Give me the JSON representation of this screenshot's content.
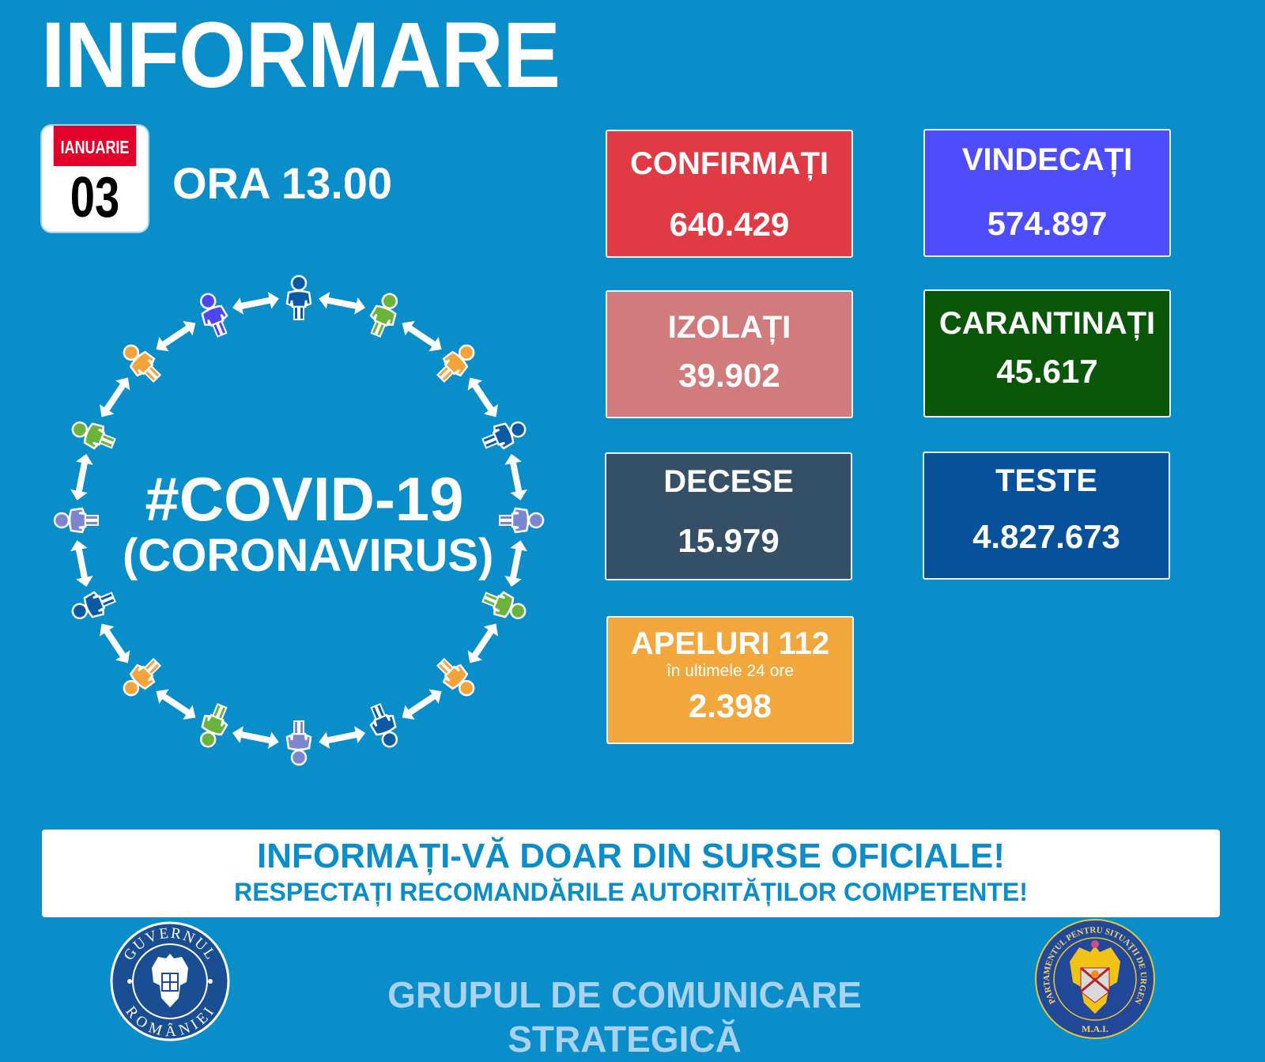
{
  "header": {
    "title": "INFORMARE",
    "date": {
      "month": "IANUARIE",
      "day": "03"
    },
    "time": "ORA 13.00"
  },
  "hero": {
    "hashtag": "#COVID-19",
    "subtitle": "(CORONAVIRUS)",
    "figure_colors": [
      "#0b5aa6",
      "#6cb33e",
      "#f2a33a",
      "#0b5aa6",
      "#7b86cf",
      "#6cb33e",
      "#f2a33a",
      "#0b5aa6",
      "#7b86cf",
      "#6cb33e",
      "#f2a33a",
      "#0b5aa6",
      "#7b86cf",
      "#6cb33e",
      "#f2a33a",
      "#4f45f2"
    ]
  },
  "stats": [
    {
      "id": "confirmati",
      "label": "CONFIRMAȚI",
      "value": "640.429",
      "color": "#e03a45"
    },
    {
      "id": "vindecati",
      "label": "VINDECAȚI",
      "value": "574.897",
      "color": "#4e4dfd"
    },
    {
      "id": "izolati",
      "label": "IZOLAȚI",
      "value": "39.902",
      "color": "#d27b7c"
    },
    {
      "id": "carantinati",
      "label": "CARANTINAȚI",
      "value": "45.617",
      "color": "#0b5709"
    },
    {
      "id": "decese",
      "label": "DECESE",
      "value": "15.979",
      "color": "#344f66"
    },
    {
      "id": "teste",
      "label": "TESTE",
      "value": "4.827.673",
      "color": "#07509a"
    },
    {
      "id": "apeluri",
      "label": "APELURI 112",
      "sublabel": "în ultimele 24 ore",
      "value": "2.398",
      "color": "#f1a73b"
    }
  ],
  "banner": {
    "line1": "INFORMAȚI-VĂ DOAR DIN SURSE OFICIALE!",
    "line2": "RESPECTAȚI RECOMANDĂRILE AUTORITĂȚILOR COMPETENTE!"
  },
  "footer": {
    "text": "GRUPUL DE COMUNICARE STRATEGICĂ",
    "left_seal": {
      "top_text": "GUVERNUL",
      "bottom_text": "ROMÂNIEI"
    },
    "right_seal": {
      "ring_text": "DEPARTAMENTUL PENTRU SITUAȚII DE URGENȚĂ",
      "bottom_text": "M.A.I."
    }
  },
  "colors": {
    "background": "#0a8ec9",
    "banner_text": "#0a8ec9",
    "footer_text": "#a9d2ee"
  }
}
